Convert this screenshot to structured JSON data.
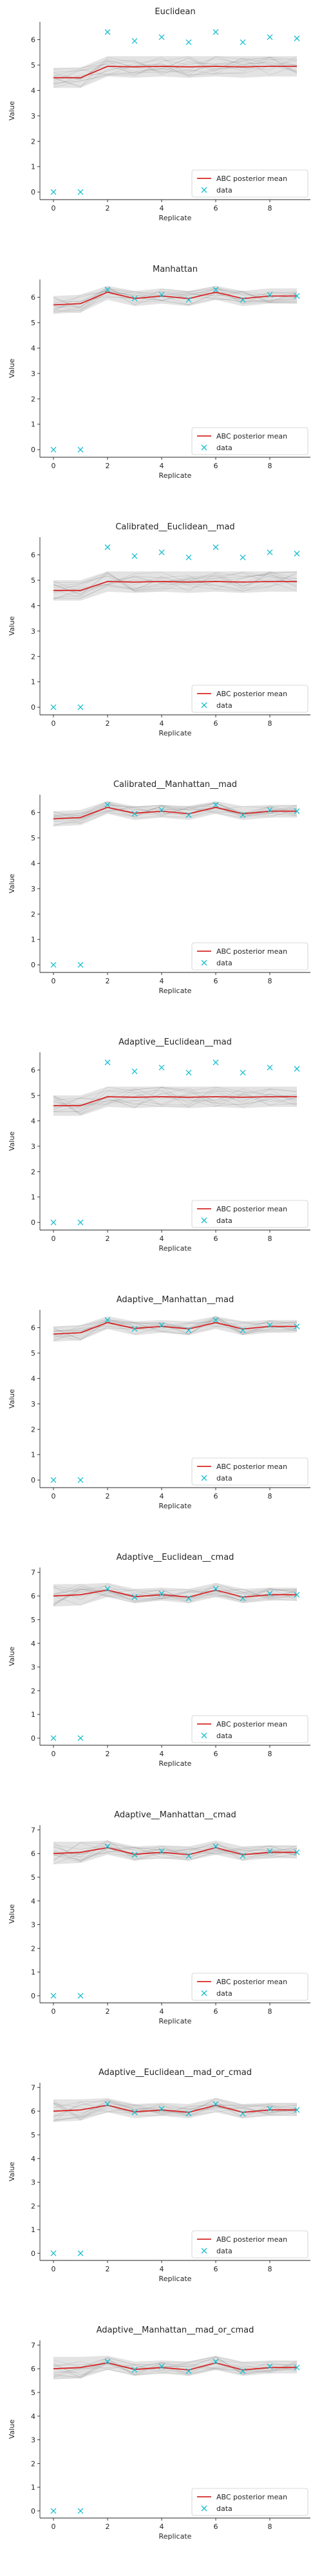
{
  "figure": {
    "xlabel": "Replicate",
    "ylabel": "Value",
    "legend_entries": [
      "ABC posterior mean",
      "data"
    ],
    "colors": {
      "mean_line": "#d62728",
      "data_marker": "#17becf",
      "band": "#9a9a9a"
    }
  },
  "chart_data": [
    {
      "type": "line",
      "title": "Euclidean",
      "xlabel": "Replicate",
      "ylabel": "Value",
      "x_ticks": [
        0,
        2,
        4,
        6,
        8
      ],
      "y_ticks": [
        0,
        1,
        2,
        3,
        4,
        5,
        6
      ],
      "xlim": [
        -0.5,
        9.5
      ],
      "ylim": [
        -0.3,
        6.7
      ],
      "grid": false,
      "legend_position": "lower-right",
      "series": [
        {
          "name": "ABC posterior mean",
          "style": "line",
          "x": [
            0,
            1,
            2,
            3,
            4,
            5,
            6,
            7,
            8,
            9
          ],
          "y": [
            4.5,
            4.5,
            4.95,
            4.93,
            4.95,
            4.93,
            4.95,
            4.93,
            4.95,
            4.95
          ]
        },
        {
          "name": "data",
          "style": "x-marker",
          "x": [
            0,
            1,
            2,
            3,
            4,
            5,
            6,
            7,
            8,
            9
          ],
          "y": [
            0.0,
            0.0,
            6.3,
            5.95,
            6.1,
            5.9,
            6.3,
            5.9,
            6.1,
            6.05
          ]
        }
      ],
      "band": {
        "lower": [
          4.1,
          4.1,
          4.55,
          4.5,
          4.55,
          4.5,
          4.55,
          4.5,
          4.55,
          4.55
        ],
        "upper": [
          4.9,
          4.9,
          5.35,
          5.35,
          5.35,
          5.35,
          5.35,
          5.35,
          5.35,
          5.35
        ]
      }
    },
    {
      "type": "line",
      "title": "Manhattan",
      "xlabel": "Replicate",
      "ylabel": "Value",
      "x_ticks": [
        0,
        2,
        4,
        6,
        8
      ],
      "y_ticks": [
        0,
        1,
        2,
        3,
        4,
        5,
        6
      ],
      "xlim": [
        -0.5,
        9.5
      ],
      "ylim": [
        -0.3,
        6.7
      ],
      "grid": false,
      "legend_position": "lower-right",
      "series": [
        {
          "name": "ABC posterior mean",
          "style": "line",
          "x": [
            0,
            1,
            2,
            3,
            4,
            5,
            6,
            7,
            8,
            9
          ],
          "y": [
            5.7,
            5.75,
            6.2,
            5.95,
            6.05,
            5.95,
            6.2,
            5.95,
            6.05,
            6.05
          ]
        },
        {
          "name": "data",
          "style": "x-marker",
          "x": [
            0,
            1,
            2,
            3,
            4,
            5,
            6,
            7,
            8,
            9
          ],
          "y": [
            0.0,
            0.0,
            6.3,
            5.95,
            6.1,
            5.9,
            6.3,
            5.9,
            6.1,
            6.05
          ]
        }
      ],
      "band": {
        "lower": [
          5.35,
          5.4,
          5.9,
          5.65,
          5.75,
          5.65,
          5.9,
          5.65,
          5.75,
          5.75
        ],
        "upper": [
          6.05,
          6.1,
          6.45,
          6.25,
          6.35,
          6.25,
          6.45,
          6.25,
          6.35,
          6.35
        ]
      }
    },
    {
      "type": "line",
      "title": "Calibrated__Euclidean__mad",
      "xlabel": "Replicate",
      "ylabel": "Value",
      "x_ticks": [
        0,
        2,
        4,
        6,
        8
      ],
      "y_ticks": [
        0,
        1,
        2,
        3,
        4,
        5,
        6
      ],
      "xlim": [
        -0.5,
        9.5
      ],
      "ylim": [
        -0.3,
        6.7
      ],
      "grid": false,
      "legend_position": "lower-right",
      "series": [
        {
          "name": "ABC posterior mean",
          "style": "line",
          "x": [
            0,
            1,
            2,
            3,
            4,
            5,
            6,
            7,
            8,
            9
          ],
          "y": [
            4.6,
            4.6,
            4.95,
            4.93,
            4.95,
            4.93,
            4.95,
            4.93,
            4.95,
            4.95
          ]
        },
        {
          "name": "data",
          "style": "x-marker",
          "x": [
            0,
            1,
            2,
            3,
            4,
            5,
            6,
            7,
            8,
            9
          ],
          "y": [
            0.0,
            0.0,
            6.3,
            5.95,
            6.1,
            5.9,
            6.3,
            5.9,
            6.1,
            6.05
          ]
        }
      ],
      "band": {
        "lower": [
          4.2,
          4.2,
          4.55,
          4.5,
          4.55,
          4.5,
          4.55,
          4.5,
          4.55,
          4.55
        ],
        "upper": [
          5.0,
          5.0,
          5.35,
          5.35,
          5.35,
          5.35,
          5.35,
          5.35,
          5.35,
          5.35
        ]
      }
    },
    {
      "type": "line",
      "title": "Calibrated__Manhattan__mad",
      "xlabel": "Replicate",
      "ylabel": "Value",
      "x_ticks": [
        0,
        2,
        4,
        6,
        8
      ],
      "y_ticks": [
        0,
        1,
        2,
        3,
        4,
        5,
        6
      ],
      "xlim": [
        -0.5,
        9.5
      ],
      "ylim": [
        -0.3,
        6.7
      ],
      "grid": false,
      "legend_position": "lower-right",
      "series": [
        {
          "name": "ABC posterior mean",
          "style": "line",
          "x": [
            0,
            1,
            2,
            3,
            4,
            5,
            6,
            7,
            8,
            9
          ],
          "y": [
            5.75,
            5.8,
            6.2,
            5.97,
            6.05,
            5.95,
            6.2,
            5.95,
            6.05,
            6.05
          ]
        },
        {
          "name": "data",
          "style": "x-marker",
          "x": [
            0,
            1,
            2,
            3,
            4,
            5,
            6,
            7,
            8,
            9
          ],
          "y": [
            0.0,
            0.0,
            6.3,
            5.95,
            6.1,
            5.9,
            6.3,
            5.9,
            6.1,
            6.05
          ]
        }
      ],
      "band": {
        "lower": [
          5.45,
          5.5,
          5.95,
          5.7,
          5.8,
          5.7,
          5.95,
          5.7,
          5.8,
          5.8
        ],
        "upper": [
          6.05,
          6.1,
          6.45,
          6.25,
          6.3,
          6.25,
          6.45,
          6.25,
          6.3,
          6.3
        ]
      }
    },
    {
      "type": "line",
      "title": "Adaptive__Euclidean__mad",
      "xlabel": "Replicate",
      "ylabel": "Value",
      "x_ticks": [
        0,
        2,
        4,
        6,
        8
      ],
      "y_ticks": [
        0,
        1,
        2,
        3,
        4,
        5,
        6
      ],
      "xlim": [
        -0.5,
        9.5
      ],
      "ylim": [
        -0.3,
        6.7
      ],
      "grid": false,
      "legend_position": "lower-right",
      "series": [
        {
          "name": "ABC posterior mean",
          "style": "line",
          "x": [
            0,
            1,
            2,
            3,
            4,
            5,
            6,
            7,
            8,
            9
          ],
          "y": [
            4.6,
            4.6,
            4.95,
            4.93,
            4.95,
            4.93,
            4.95,
            4.93,
            4.95,
            4.95
          ]
        },
        {
          "name": "data",
          "style": "x-marker",
          "x": [
            0,
            1,
            2,
            3,
            4,
            5,
            6,
            7,
            8,
            9
          ],
          "y": [
            0.0,
            0.0,
            6.3,
            5.95,
            6.1,
            5.9,
            6.3,
            5.9,
            6.1,
            6.05
          ]
        }
      ],
      "band": {
        "lower": [
          4.2,
          4.2,
          4.55,
          4.5,
          4.55,
          4.5,
          4.55,
          4.5,
          4.55,
          4.55
        ],
        "upper": [
          5.0,
          5.0,
          5.35,
          5.35,
          5.35,
          5.35,
          5.35,
          5.35,
          5.35,
          5.35
        ]
      }
    },
    {
      "type": "line",
      "title": "Adaptive__Manhattan__mad",
      "xlabel": "Replicate",
      "ylabel": "Value",
      "x_ticks": [
        0,
        2,
        4,
        6,
        8
      ],
      "y_ticks": [
        0,
        1,
        2,
        3,
        4,
        5,
        6
      ],
      "xlim": [
        -0.5,
        9.5
      ],
      "ylim": [
        -0.3,
        6.7
      ],
      "grid": false,
      "legend_position": "lower-right",
      "series": [
        {
          "name": "ABC posterior mean",
          "style": "line",
          "x": [
            0,
            1,
            2,
            3,
            4,
            5,
            6,
            7,
            8,
            9
          ],
          "y": [
            5.75,
            5.8,
            6.2,
            5.97,
            6.05,
            5.95,
            6.2,
            5.95,
            6.05,
            6.05
          ]
        },
        {
          "name": "data",
          "style": "x-marker",
          "x": [
            0,
            1,
            2,
            3,
            4,
            5,
            6,
            7,
            8,
            9
          ],
          "y": [
            0.0,
            0.0,
            6.3,
            5.95,
            6.1,
            5.9,
            6.3,
            5.9,
            6.1,
            6.05
          ]
        }
      ],
      "band": {
        "lower": [
          5.45,
          5.5,
          5.95,
          5.7,
          5.8,
          5.7,
          5.95,
          5.7,
          5.8,
          5.8
        ],
        "upper": [
          6.05,
          6.1,
          6.45,
          6.25,
          6.3,
          6.25,
          6.45,
          6.25,
          6.3,
          6.3
        ]
      }
    },
    {
      "type": "line",
      "title": "Adaptive__Euclidean__cmad",
      "xlabel": "Replicate",
      "ylabel": "Value",
      "x_ticks": [
        0,
        2,
        4,
        6,
        8
      ],
      "y_ticks": [
        0,
        1,
        2,
        3,
        4,
        5,
        6,
        7
      ],
      "xlim": [
        -0.5,
        9.5
      ],
      "ylim": [
        -0.3,
        7.2
      ],
      "grid": false,
      "legend_position": "lower-right",
      "series": [
        {
          "name": "ABC posterior mean",
          "style": "line",
          "x": [
            0,
            1,
            2,
            3,
            4,
            5,
            6,
            7,
            8,
            9
          ],
          "y": [
            6.0,
            6.05,
            6.25,
            5.97,
            6.05,
            5.95,
            6.25,
            5.95,
            6.05,
            6.05
          ]
        },
        {
          "name": "data",
          "style": "x-marker",
          "x": [
            0,
            1,
            2,
            3,
            4,
            5,
            6,
            7,
            8,
            9
          ],
          "y": [
            0.0,
            0.0,
            6.3,
            5.95,
            6.1,
            5.9,
            6.3,
            5.9,
            6.1,
            6.05
          ]
        }
      ],
      "band": {
        "lower": [
          5.55,
          5.6,
          5.95,
          5.7,
          5.8,
          5.7,
          5.95,
          5.7,
          5.8,
          5.8
        ],
        "upper": [
          6.5,
          6.5,
          6.55,
          6.3,
          6.35,
          6.3,
          6.55,
          6.3,
          6.35,
          6.35
        ]
      }
    },
    {
      "type": "line",
      "title": "Adaptive__Manhattan__cmad",
      "xlabel": "Replicate",
      "ylabel": "Value",
      "x_ticks": [
        0,
        2,
        4,
        6,
        8
      ],
      "y_ticks": [
        0,
        1,
        2,
        3,
        4,
        5,
        6,
        7
      ],
      "xlim": [
        -0.5,
        9.5
      ],
      "ylim": [
        -0.3,
        7.2
      ],
      "grid": false,
      "legend_position": "lower-right",
      "series": [
        {
          "name": "ABC posterior mean",
          "style": "line",
          "x": [
            0,
            1,
            2,
            3,
            4,
            5,
            6,
            7,
            8,
            9
          ],
          "y": [
            6.0,
            6.05,
            6.25,
            5.97,
            6.05,
            5.95,
            6.25,
            5.95,
            6.05,
            6.05
          ]
        },
        {
          "name": "data",
          "style": "x-marker",
          "x": [
            0,
            1,
            2,
            3,
            4,
            5,
            6,
            7,
            8,
            9
          ],
          "y": [
            0.0,
            0.0,
            6.3,
            5.95,
            6.1,
            5.9,
            6.3,
            5.9,
            6.1,
            6.05
          ]
        }
      ],
      "band": {
        "lower": [
          5.55,
          5.6,
          5.95,
          5.7,
          5.8,
          5.7,
          5.95,
          5.7,
          5.8,
          5.8
        ],
        "upper": [
          6.5,
          6.5,
          6.55,
          6.3,
          6.35,
          6.3,
          6.55,
          6.3,
          6.35,
          6.35
        ]
      }
    },
    {
      "type": "line",
      "title": "Adaptive__Euclidean__mad_or_cmad",
      "xlabel": "Replicate",
      "ylabel": "Value",
      "x_ticks": [
        0,
        2,
        4,
        6,
        8
      ],
      "y_ticks": [
        0,
        1,
        2,
        3,
        4,
        5,
        6,
        7
      ],
      "xlim": [
        -0.5,
        9.5
      ],
      "ylim": [
        -0.3,
        7.2
      ],
      "grid": false,
      "legend_position": "lower-right",
      "series": [
        {
          "name": "ABC posterior mean",
          "style": "line",
          "x": [
            0,
            1,
            2,
            3,
            4,
            5,
            6,
            7,
            8,
            9
          ],
          "y": [
            6.0,
            6.05,
            6.25,
            5.97,
            6.05,
            5.95,
            6.25,
            5.95,
            6.05,
            6.05
          ]
        },
        {
          "name": "data",
          "style": "x-marker",
          "x": [
            0,
            1,
            2,
            3,
            4,
            5,
            6,
            7,
            8,
            9
          ],
          "y": [
            0.0,
            0.0,
            6.3,
            5.95,
            6.1,
            5.9,
            6.3,
            5.9,
            6.1,
            6.05
          ]
        }
      ],
      "band": {
        "lower": [
          5.55,
          5.6,
          5.95,
          5.7,
          5.8,
          5.7,
          5.95,
          5.7,
          5.8,
          5.8
        ],
        "upper": [
          6.5,
          6.5,
          6.55,
          6.3,
          6.35,
          6.3,
          6.55,
          6.3,
          6.35,
          6.35
        ]
      }
    },
    {
      "type": "line",
      "title": "Adaptive__Manhattan__mad_or_cmad",
      "xlabel": "Replicate",
      "ylabel": "Value",
      "x_ticks": [
        0,
        2,
        4,
        6,
        8
      ],
      "y_ticks": [
        0,
        1,
        2,
        3,
        4,
        5,
        6,
        7
      ],
      "xlim": [
        -0.5,
        9.5
      ],
      "ylim": [
        -0.3,
        7.2
      ],
      "grid": false,
      "legend_position": "lower-right",
      "series": [
        {
          "name": "ABC posterior mean",
          "style": "line",
          "x": [
            0,
            1,
            2,
            3,
            4,
            5,
            6,
            7,
            8,
            9
          ],
          "y": [
            6.0,
            6.05,
            6.25,
            5.97,
            6.05,
            5.95,
            6.25,
            5.95,
            6.05,
            6.05
          ]
        },
        {
          "name": "data",
          "style": "x-marker",
          "x": [
            0,
            1,
            2,
            3,
            4,
            5,
            6,
            7,
            8,
            9
          ],
          "y": [
            0.0,
            0.0,
            6.3,
            5.95,
            6.1,
            5.9,
            6.3,
            5.9,
            6.1,
            6.05
          ]
        }
      ],
      "band": {
        "lower": [
          5.55,
          5.6,
          5.95,
          5.7,
          5.8,
          5.7,
          5.95,
          5.7,
          5.8,
          5.8
        ],
        "upper": [
          6.5,
          6.5,
          6.55,
          6.3,
          6.35,
          6.3,
          6.55,
          6.3,
          6.35,
          6.35
        ]
      }
    }
  ]
}
